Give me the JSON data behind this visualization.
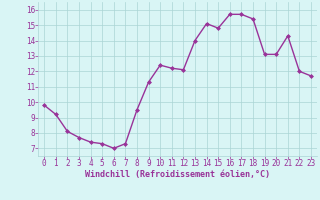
{
  "x": [
    0,
    1,
    2,
    3,
    4,
    5,
    6,
    7,
    8,
    9,
    10,
    11,
    12,
    13,
    14,
    15,
    16,
    17,
    18,
    19,
    20,
    21,
    22,
    23
  ],
  "y": [
    9.8,
    9.2,
    8.1,
    7.7,
    7.4,
    7.3,
    7.0,
    7.3,
    9.5,
    11.3,
    12.4,
    12.2,
    12.1,
    14.0,
    15.1,
    14.8,
    15.7,
    15.7,
    15.4,
    13.1,
    13.1,
    14.3,
    12.0,
    11.7
  ],
  "line_color": "#993399",
  "marker": "D",
  "marker_size": 2.0,
  "bg_color": "#d9f5f5",
  "grid_color": "#aad4d4",
  "xlabel": "Windchill (Refroidissement éolien,°C)",
  "xlabel_color": "#993399",
  "xticks": [
    0,
    1,
    2,
    3,
    4,
    5,
    6,
    7,
    8,
    9,
    10,
    11,
    12,
    13,
    14,
    15,
    16,
    17,
    18,
    19,
    20,
    21,
    22,
    23
  ],
  "yticks": [
    7,
    8,
    9,
    10,
    11,
    12,
    13,
    14,
    15,
    16
  ],
  "xlim": [
    -0.5,
    23.5
  ],
  "ylim": [
    6.5,
    16.5
  ],
  "tick_color": "#993399",
  "tick_fontsize": 5.5,
  "xlabel_fontsize": 6.0,
  "linewidth": 1.0
}
